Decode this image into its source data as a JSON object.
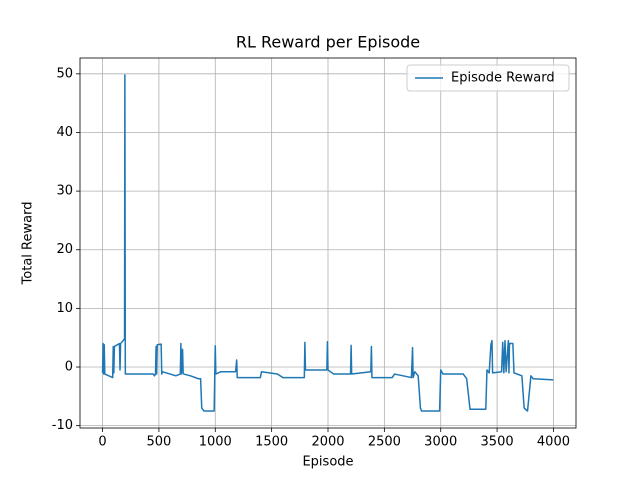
{
  "chart_data": {
    "type": "line",
    "title": "RL Reward per Episode",
    "x_label": "Episode",
    "y_label": "Total Reward",
    "x": [
      0,
      5,
      10,
      15,
      20,
      90,
      95,
      100,
      105,
      150,
      155,
      160,
      195,
      198,
      202,
      450,
      460,
      470,
      475,
      480,
      485,
      520,
      525,
      530,
      600,
      650,
      690,
      695,
      700,
      710,
      715,
      720,
      780,
      850,
      870,
      880,
      900,
      990,
      1000,
      1005,
      1050,
      1180,
      1190,
      1195,
      1400,
      1410,
      1550,
      1600,
      1790,
      1795,
      1800,
      1990,
      1995,
      2000,
      2050,
      2200,
      2205,
      2210,
      2380,
      2385,
      2390,
      2570,
      2590,
      2740,
      2750,
      2755,
      2770,
      2800,
      2820,
      2830,
      2990,
      3000,
      3020,
      3200,
      3230,
      3260,
      3400,
      3410,
      3430,
      3445,
      3455,
      3460,
      3540,
      3550,
      3560,
      3570,
      3580,
      3600,
      3605,
      3610,
      3640,
      3650,
      3720,
      3740,
      3770,
      3800,
      3820,
      3999
    ],
    "series": [
      {
        "name": "Episode Reward",
        "color": "#1f77b4",
        "values": [
          -1,
          4,
          -1.2,
          3.8,
          -1.2,
          -1.8,
          3.5,
          -1,
          3.5,
          4,
          -0.5,
          4,
          4.8,
          49.8,
          -1.2,
          -1.2,
          -1.5,
          -1.2,
          3.5,
          -1.2,
          3.8,
          3.9,
          -1.2,
          -0.8,
          -1.2,
          -1.5,
          -1.2,
          4,
          -1.2,
          3,
          -1,
          -1.2,
          -1.5,
          -2,
          -2,
          -7,
          -7.5,
          -7.5,
          3.6,
          -1.2,
          -0.8,
          -0.8,
          1.2,
          -1.8,
          -1.8,
          -0.8,
          -1.2,
          -1.8,
          -1.8,
          4.2,
          -0.5,
          -0.5,
          4.3,
          -0.5,
          -1.2,
          -1.2,
          3.7,
          -1.2,
          -0.8,
          3.5,
          -1.8,
          -1.8,
          -1.2,
          -1.8,
          3.3,
          -1.8,
          -0.8,
          -1.5,
          -7,
          -7.5,
          -7.5,
          -0.5,
          -1.2,
          -1.2,
          -2,
          -7.2,
          -7.2,
          -0.5,
          -1,
          3.8,
          4.5,
          -1,
          -0.8,
          4.2,
          -1,
          4.5,
          -0.8,
          4.5,
          -1,
          4,
          4,
          -1,
          -1.5,
          -7,
          -7.5,
          -1.5,
          -2,
          -2.2
        ]
      }
    ],
    "xlim": [
      -200,
      4200
    ],
    "ylim": [
      -10.4,
      52.7
    ],
    "xticks": [
      0,
      500,
      1000,
      1500,
      2000,
      2500,
      3000,
      3500,
      4000
    ],
    "yticks": [
      -10,
      0,
      10,
      20,
      30,
      40,
      50
    ],
    "grid": true,
    "legend": "upper right"
  }
}
